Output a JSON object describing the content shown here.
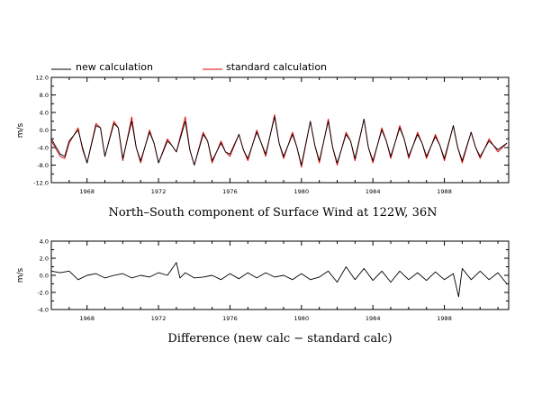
{
  "legend": {
    "new_label": "new calculation",
    "std_label": "standard calculation"
  },
  "colors": {
    "new": "#000000",
    "standard": "#e00000"
  },
  "chart_data": [
    {
      "type": "line",
      "title": "North–South component of Surface Wind at 122W, 36N",
      "ylabel": "m/s",
      "xlim": [
        1966,
        1991.6
      ],
      "ylim": [
        -12.0,
        12.0
      ],
      "yticks": [
        -12.0,
        -8.0,
        -4.0,
        0.0,
        4.0,
        8.0,
        12.0
      ],
      "ytick_labels": [
        "-12.0",
        "-8.0",
        "-4.0",
        "0.0",
        "4.0",
        "8.0",
        "12.0"
      ],
      "xticks": [
        1968,
        1972,
        1976,
        1980,
        1984,
        1988
      ],
      "xtick_labels": [
        "1968",
        "1972",
        "1976",
        "1980",
        "1984",
        "1988"
      ],
      "series": [
        {
          "name": "new calculation",
          "x": [
            1966.0,
            1966.5,
            1966.75,
            1967.0,
            1967.5,
            1967.75,
            1968.0,
            1968.5,
            1968.75,
            1969.0,
            1969.5,
            1969.75,
            1970.0,
            1970.5,
            1970.75,
            1971.0,
            1971.5,
            1971.75,
            1972.0,
            1972.5,
            1972.75,
            1973.0,
            1973.5,
            1973.75,
            1974.0,
            1974.5,
            1974.75,
            1975.0,
            1975.5,
            1975.75,
            1976.0,
            1976.5,
            1976.75,
            1977.0,
            1977.5,
            1977.75,
            1978.0,
            1978.5,
            1978.75,
            1979.0,
            1979.5,
            1979.75,
            1980.0,
            1980.5,
            1980.75,
            1981.0,
            1981.5,
            1981.75,
            1982.0,
            1982.5,
            1982.75,
            1983.0,
            1983.5,
            1983.75,
            1984.0,
            1984.5,
            1984.75,
            1985.0,
            1985.5,
            1985.75,
            1986.0,
            1986.5,
            1986.75,
            1987.0,
            1987.5,
            1987.75,
            1988.0,
            1988.5,
            1988.75,
            1989.0,
            1989.5,
            1989.75,
            1990.0,
            1990.5,
            1990.75,
            1991.0,
            1991.5
          ],
          "values": [
            -2.0,
            -5.5,
            -6.0,
            -2.5,
            0.0,
            -4.0,
            -7.5,
            1.0,
            0.5,
            -6.0,
            1.5,
            0.5,
            -6.5,
            2.0,
            -4.0,
            -7.0,
            -0.5,
            -3.0,
            -7.5,
            -2.5,
            -3.5,
            -5.0,
            2.0,
            -4.5,
            -8.0,
            -1.0,
            -2.5,
            -7.0,
            -3.0,
            -5.0,
            -5.5,
            -1.0,
            -4.5,
            -6.5,
            -0.5,
            -3.0,
            -5.5,
            3.0,
            -3.0,
            -6.0,
            -1.0,
            -4.0,
            -8.0,
            2.0,
            -3.5,
            -7.0,
            2.0,
            -4.0,
            -7.5,
            -1.0,
            -2.5,
            -6.5,
            2.5,
            -4.0,
            -7.0,
            0.0,
            -2.5,
            -6.0,
            0.5,
            -2.0,
            -6.0,
            -1.0,
            -3.0,
            -6.0,
            -1.5,
            -3.5,
            -6.5,
            1.0,
            -4.0,
            -7.0,
            -0.5,
            -4.0,
            -6.0,
            -2.5,
            -3.5,
            -4.5,
            -3.0
          ]
        },
        {
          "name": "standard calculation",
          "x": [
            1966.0,
            1966.5,
            1966.75,
            1967.0,
            1967.5,
            1967.75,
            1968.0,
            1968.5,
            1968.75,
            1969.0,
            1969.5,
            1969.75,
            1970.0,
            1970.5,
            1970.75,
            1971.0,
            1971.5,
            1971.75,
            1972.0,
            1972.5,
            1972.75,
            1973.0,
            1973.5,
            1973.75,
            1974.0,
            1974.5,
            1974.75,
            1975.0,
            1975.5,
            1975.75,
            1976.0,
            1976.5,
            1976.75,
            1977.0,
            1977.5,
            1977.75,
            1978.0,
            1978.5,
            1978.75,
            1979.0,
            1979.5,
            1979.75,
            1980.0,
            1980.5,
            1980.75,
            1981.0,
            1981.5,
            1981.75,
            1982.0,
            1982.5,
            1982.75,
            1983.0,
            1983.5,
            1983.75,
            1984.0,
            1984.5,
            1984.75,
            1985.0,
            1985.5,
            1985.75,
            1986.0,
            1986.5,
            1986.75,
            1987.0,
            1987.5,
            1987.75,
            1988.0,
            1988.5,
            1988.75,
            1989.0,
            1989.5,
            1989.75,
            1990.0,
            1990.5,
            1990.75,
            1991.0,
            1991.5
          ],
          "values": [
            -2.5,
            -6.0,
            -6.5,
            -3.0,
            0.5,
            -4.5,
            -7.5,
            1.5,
            0.5,
            -6.0,
            2.0,
            0.5,
            -7.0,
            3.0,
            -4.0,
            -7.5,
            0.0,
            -3.0,
            -7.5,
            -2.0,
            -3.5,
            -5.0,
            3.0,
            -4.5,
            -8.0,
            -0.5,
            -2.5,
            -7.5,
            -2.5,
            -5.0,
            -6.0,
            -1.0,
            -4.5,
            -7.0,
            0.0,
            -3.0,
            -6.0,
            3.5,
            -3.0,
            -6.5,
            -0.5,
            -4.0,
            -8.5,
            2.0,
            -3.5,
            -7.5,
            2.5,
            -4.0,
            -8.0,
            -0.5,
            -2.5,
            -7.0,
            2.5,
            -4.0,
            -7.5,
            0.5,
            -2.5,
            -6.5,
            1.0,
            -2.0,
            -6.5,
            -0.5,
            -3.0,
            -6.5,
            -1.0,
            -3.5,
            -7.0,
            1.0,
            -4.0,
            -7.5,
            -0.5,
            -4.0,
            -6.5,
            -2.0,
            -3.5,
            -5.0,
            -3.0
          ]
        }
      ]
    },
    {
      "type": "line",
      "title": "Difference (new calc − standard calc)",
      "ylabel": "m/s",
      "xlim": [
        1966,
        1991.6
      ],
      "ylim": [
        -4.0,
        4.0
      ],
      "yticks": [
        -4.0,
        -2.0,
        0.0,
        2.0,
        4.0
      ],
      "ytick_labels": [
        "-4.0",
        "-2.0",
        "0.0",
        "2.0",
        "4.0"
      ],
      "xticks": [
        1968,
        1972,
        1976,
        1980,
        1984,
        1988
      ],
      "xtick_labels": [
        "1968",
        "1972",
        "1976",
        "1980",
        "1984",
        "1988"
      ],
      "series": [
        {
          "name": "",
          "x": [
            1966.0,
            1966.5,
            1967.0,
            1967.5,
            1968.0,
            1968.5,
            1969.0,
            1969.5,
            1970.0,
            1970.5,
            1971.0,
            1971.5,
            1972.0,
            1972.5,
            1973.0,
            1973.2,
            1973.5,
            1974.0,
            1974.5,
            1975.0,
            1975.5,
            1976.0,
            1976.5,
            1977.0,
            1977.5,
            1978.0,
            1978.5,
            1979.0,
            1979.5,
            1980.0,
            1980.5,
            1981.0,
            1981.5,
            1982.0,
            1982.5,
            1983.0,
            1983.5,
            1984.0,
            1984.5,
            1985.0,
            1985.5,
            1986.0,
            1986.5,
            1987.0,
            1987.5,
            1988.0,
            1988.5,
            1988.8,
            1989.0,
            1989.5,
            1990.0,
            1990.5,
            1991.0,
            1991.5
          ],
          "values": [
            0.5,
            0.3,
            0.5,
            -0.5,
            0.0,
            0.2,
            -0.3,
            0.0,
            0.2,
            -0.3,
            0.0,
            -0.2,
            0.3,
            0.0,
            1.5,
            -0.3,
            0.3,
            -0.3,
            -0.2,
            0.0,
            -0.5,
            0.2,
            -0.4,
            0.3,
            -0.3,
            0.3,
            -0.2,
            0.0,
            -0.5,
            0.2,
            -0.5,
            -0.2,
            0.5,
            -0.8,
            1.0,
            -0.5,
            0.8,
            -0.6,
            0.5,
            -0.8,
            0.5,
            -0.5,
            0.3,
            -0.6,
            0.4,
            -0.5,
            0.2,
            -2.5,
            0.8,
            -0.5,
            0.5,
            -0.5,
            0.3,
            -1.0
          ]
        }
      ]
    }
  ]
}
